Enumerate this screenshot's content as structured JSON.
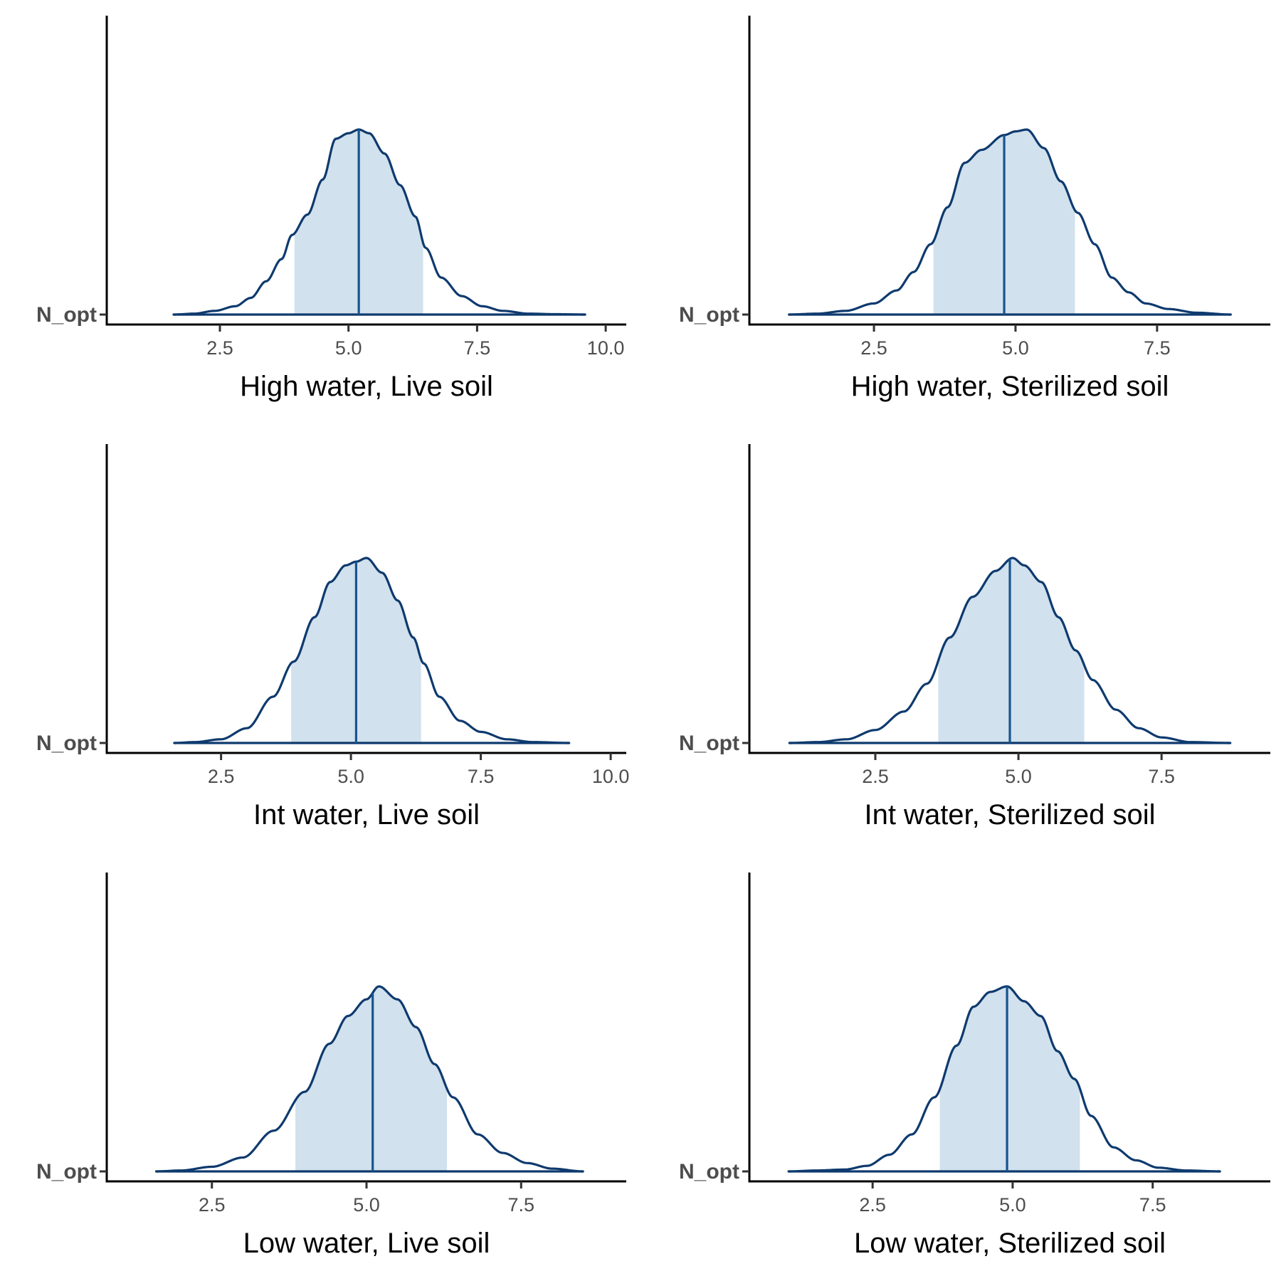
{
  "chart_data": [
    {
      "type": "area",
      "xlabel": "High water, Live soil",
      "ytick": "N_opt",
      "xticks": [
        "2.5",
        "5.0",
        "7.5",
        "10.0"
      ],
      "xtick_values": [
        2.5,
        5.0,
        7.5,
        10.0
      ],
      "xlim": [
        0.3,
        10.4
      ],
      "density_points": [
        [
          1.6,
          0.0
        ],
        [
          2.0,
          0.005
        ],
        [
          2.4,
          0.02
        ],
        [
          2.8,
          0.045
        ],
        [
          3.1,
          0.09
        ],
        [
          3.4,
          0.18
        ],
        [
          3.7,
          0.3
        ],
        [
          3.9,
          0.43
        ],
        [
          4.2,
          0.54
        ],
        [
          4.5,
          0.73
        ],
        [
          4.75,
          0.95
        ],
        [
          5.0,
          0.98
        ],
        [
          5.2,
          1.0
        ],
        [
          5.4,
          0.98
        ],
        [
          5.7,
          0.87
        ],
        [
          6.0,
          0.7
        ],
        [
          6.3,
          0.53
        ],
        [
          6.5,
          0.36
        ],
        [
          6.8,
          0.2
        ],
        [
          7.2,
          0.1
        ],
        [
          7.6,
          0.045
        ],
        [
          8.0,
          0.02
        ],
        [
          8.5,
          0.005
        ],
        [
          9.0,
          0.002
        ],
        [
          9.6,
          0.0
        ]
      ],
      "median": 5.2,
      "interval": [
        3.95,
        6.45
      ],
      "colors": {
        "line": "#0e3a6e",
        "fill": "#d1e1ed",
        "median": "#17548f"
      }
    },
    {
      "type": "area",
      "xlabel": "High water, Sterilized soil",
      "ytick": "N_opt",
      "xticks": [
        "2.5",
        "5.0",
        "7.5"
      ],
      "xtick_values": [
        2.5,
        5.0,
        7.5
      ],
      "xlim": [
        0.3,
        9.5
      ],
      "density_points": [
        [
          1.0,
          0.0
        ],
        [
          1.5,
          0.005
        ],
        [
          2.0,
          0.02
        ],
        [
          2.5,
          0.06
        ],
        [
          2.9,
          0.13
        ],
        [
          3.2,
          0.23
        ],
        [
          3.5,
          0.38
        ],
        [
          3.8,
          0.58
        ],
        [
          4.1,
          0.82
        ],
        [
          4.4,
          0.89
        ],
        [
          4.8,
          0.97
        ],
        [
          5.0,
          0.99
        ],
        [
          5.2,
          1.0
        ],
        [
          5.5,
          0.9
        ],
        [
          5.8,
          0.72
        ],
        [
          6.1,
          0.55
        ],
        [
          6.4,
          0.38
        ],
        [
          6.7,
          0.2
        ],
        [
          7.0,
          0.12
        ],
        [
          7.3,
          0.06
        ],
        [
          7.7,
          0.03
        ],
        [
          8.2,
          0.01
        ],
        [
          8.8,
          0.0
        ]
      ],
      "median": 4.8,
      "interval": [
        3.55,
        6.05
      ],
      "colors": {
        "line": "#0e3a6e",
        "fill": "#d1e1ed",
        "median": "#17548f"
      }
    },
    {
      "type": "area",
      "xlabel": "Int water, Live soil",
      "ytick": "N_opt",
      "xticks": [
        "2.5",
        "5.0",
        "7.5",
        "10.0"
      ],
      "xtick_values": [
        2.5,
        5.0,
        7.5,
        10.0
      ],
      "xlim": [
        0.3,
        10.3
      ],
      "density_points": [
        [
          1.6,
          0.0
        ],
        [
          2.0,
          0.005
        ],
        [
          2.5,
          0.02
        ],
        [
          3.0,
          0.08
        ],
        [
          3.5,
          0.25
        ],
        [
          3.9,
          0.44
        ],
        [
          4.3,
          0.68
        ],
        [
          4.6,
          0.87
        ],
        [
          4.9,
          0.96
        ],
        [
          5.1,
          0.98
        ],
        [
          5.3,
          1.0
        ],
        [
          5.6,
          0.92
        ],
        [
          5.9,
          0.77
        ],
        [
          6.2,
          0.57
        ],
        [
          6.4,
          0.43
        ],
        [
          6.7,
          0.25
        ],
        [
          7.1,
          0.12
        ],
        [
          7.5,
          0.06
        ],
        [
          8.0,
          0.02
        ],
        [
          8.5,
          0.005
        ],
        [
          9.2,
          0.0
        ]
      ],
      "median": 5.1,
      "interval": [
        3.85,
        6.35
      ],
      "colors": {
        "line": "#0e3a6e",
        "fill": "#d1e1ed",
        "median": "#17548f"
      }
    },
    {
      "type": "area",
      "xlabel": "Int water, Sterilized soil",
      "ytick": "N_opt",
      "xticks": [
        "2.5",
        "5.0",
        "7.5"
      ],
      "xtick_values": [
        2.5,
        5.0,
        7.5
      ],
      "xlim": [
        0.3,
        9.4
      ],
      "density_points": [
        [
          1.0,
          0.0
        ],
        [
          1.5,
          0.005
        ],
        [
          2.0,
          0.02
        ],
        [
          2.5,
          0.07
        ],
        [
          3.0,
          0.17
        ],
        [
          3.4,
          0.32
        ],
        [
          3.8,
          0.57
        ],
        [
          4.2,
          0.79
        ],
        [
          4.6,
          0.93
        ],
        [
          4.9,
          1.0
        ],
        [
          5.1,
          0.96
        ],
        [
          5.4,
          0.87
        ],
        [
          5.7,
          0.68
        ],
        [
          6.0,
          0.5
        ],
        [
          6.3,
          0.34
        ],
        [
          6.7,
          0.18
        ],
        [
          7.1,
          0.08
        ],
        [
          7.5,
          0.03
        ],
        [
          8.0,
          0.005
        ],
        [
          8.7,
          0.0
        ]
      ],
      "median": 4.85,
      "interval": [
        3.6,
        6.15
      ],
      "colors": {
        "line": "#0e3a6e",
        "fill": "#d1e1ed",
        "median": "#17548f"
      }
    },
    {
      "type": "area",
      "xlabel": "Low water, Live soil",
      "ytick": "N_opt",
      "xticks": [
        "2.5",
        "5.0",
        "7.5"
      ],
      "xtick_values": [
        2.5,
        5.0,
        7.5
      ],
      "xlim": [
        0.8,
        9.2
      ],
      "density_points": [
        [
          1.6,
          0.0
        ],
        [
          2.0,
          0.005
        ],
        [
          2.5,
          0.025
        ],
        [
          3.0,
          0.075
        ],
        [
          3.5,
          0.22
        ],
        [
          4.0,
          0.43
        ],
        [
          4.4,
          0.69
        ],
        [
          4.7,
          0.84
        ],
        [
          5.0,
          0.93
        ],
        [
          5.2,
          1.0
        ],
        [
          5.5,
          0.93
        ],
        [
          5.8,
          0.78
        ],
        [
          6.1,
          0.58
        ],
        [
          6.4,
          0.4
        ],
        [
          6.8,
          0.2
        ],
        [
          7.2,
          0.1
        ],
        [
          7.6,
          0.045
        ],
        [
          8.0,
          0.015
        ],
        [
          8.5,
          0.0
        ]
      ],
      "median": 5.1,
      "interval": [
        3.85,
        6.3
      ],
      "colors": {
        "line": "#0e3a6e",
        "fill": "#d1e1ed",
        "median": "#17548f"
      }
    },
    {
      "type": "area",
      "xlabel": "Low water, Sterilized soil",
      "ytick": "N_opt",
      "xticks": [
        "2.5",
        "5.0",
        "7.5"
      ],
      "xtick_values": [
        2.5,
        5.0,
        7.5
      ],
      "xlim": [
        0.3,
        9.6
      ],
      "density_points": [
        [
          1.0,
          0.0
        ],
        [
          1.5,
          0.005
        ],
        [
          2.0,
          0.01
        ],
        [
          2.4,
          0.03
        ],
        [
          2.8,
          0.09
        ],
        [
          3.2,
          0.2
        ],
        [
          3.6,
          0.4
        ],
        [
          4.0,
          0.68
        ],
        [
          4.3,
          0.89
        ],
        [
          4.6,
          0.97
        ],
        [
          4.9,
          1.0
        ],
        [
          5.2,
          0.92
        ],
        [
          5.5,
          0.84
        ],
        [
          5.8,
          0.65
        ],
        [
          6.1,
          0.5
        ],
        [
          6.4,
          0.3
        ],
        [
          6.8,
          0.13
        ],
        [
          7.2,
          0.06
        ],
        [
          7.6,
          0.02
        ],
        [
          8.1,
          0.005
        ],
        [
          8.7,
          0.0
        ]
      ],
      "median": 4.9,
      "interval": [
        3.7,
        6.2
      ],
      "colors": {
        "line": "#0e3a6e",
        "fill": "#d1e1ed",
        "median": "#17548f"
      }
    }
  ]
}
